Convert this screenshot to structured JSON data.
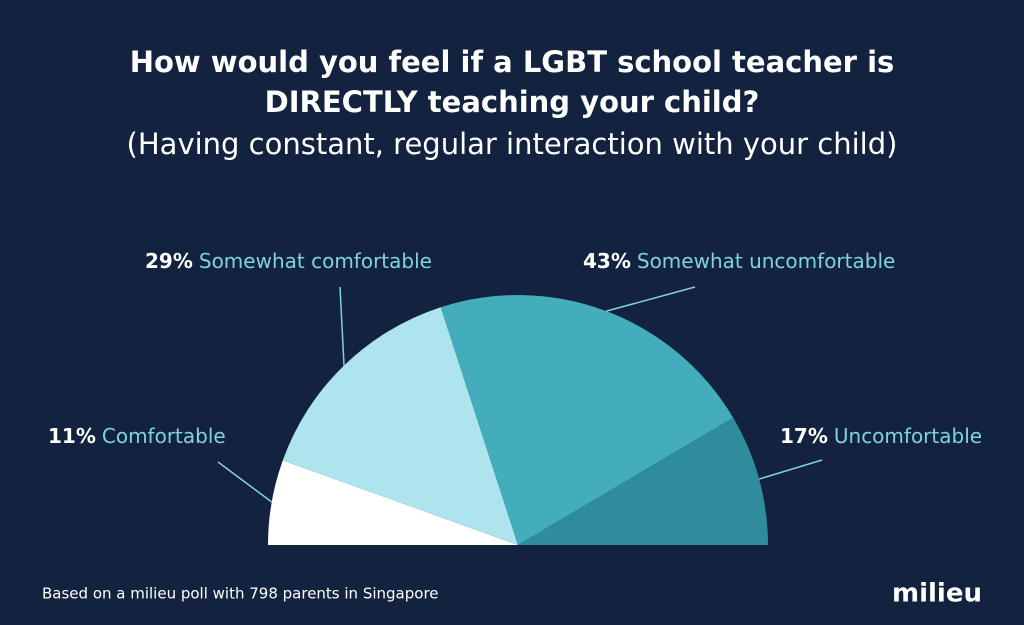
{
  "chart_data": {
    "type": "half-pie",
    "title": [
      "How would you feel if a LGBT school teacher is",
      "DIRECTLY teaching your child?"
    ],
    "subtitle": "(Having constant, regular interaction with your child)",
    "categories": [
      "Comfortable",
      "Somewhat comfortable",
      "Somewhat uncomfortable",
      "Uncomfortable"
    ],
    "values": [
      11,
      29,
      43,
      17
    ],
    "value_labels": [
      "11%",
      "29%",
      "43%",
      "17%"
    ],
    "colors": [
      "#ffffff",
      "#ade4ee",
      "#44adbb",
      "#2f8c9d"
    ],
    "footnote": "Based on a milieu poll with 798 parents in Singapore",
    "logo": "milieu"
  }
}
